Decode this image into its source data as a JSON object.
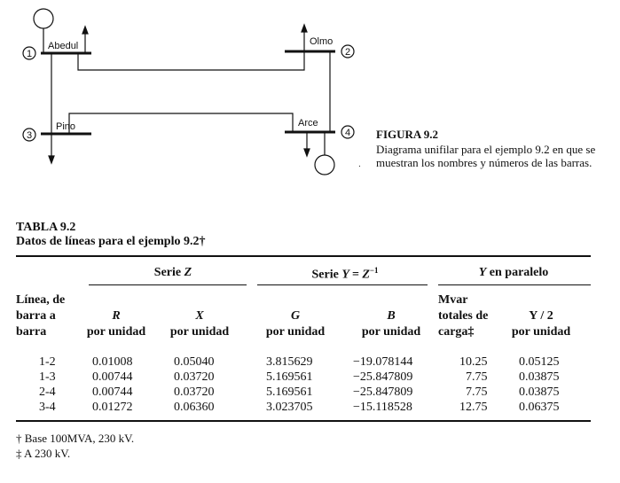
{
  "figure": {
    "title": "FIGURA 9.2",
    "caption": "Diagrama unifilar para el ejemplo 9.2 en que se muestran los nombres y números de las barras.",
    "buses": [
      {
        "number": "①",
        "name": "Abedul"
      },
      {
        "number": "②",
        "name": "Olmo"
      },
      {
        "number": "③",
        "name": "Pino"
      },
      {
        "number": "④",
        "name": "Arce"
      }
    ]
  },
  "table": {
    "title": "TABLA 9.2",
    "subtitle": "Datos de líneas para el ejemplo 9.2†",
    "group_headers": {
      "series_z_text": "Serie ",
      "series_z_sym": "Z",
      "series_y_text": "Serie ",
      "series_y_sym": "Y = Z",
      "series_y_exp": "−1",
      "parallel_sym": "Y",
      "parallel_text": " en paralelo"
    },
    "columns": [
      {
        "line1": "Línea, de",
        "line2": "barra a",
        "line3": "barra"
      },
      {
        "sym": "R",
        "unit": "por unidad"
      },
      {
        "sym": "X",
        "unit": "por unidad"
      },
      {
        "sym": "G",
        "unit": "por unidad"
      },
      {
        "sym": "B",
        "unit": "por unidad"
      },
      {
        "line1": "Mvar",
        "line2": "totales de",
        "line3": "carga‡"
      },
      {
        "sym": "Y / 2",
        "unit": "por unidad"
      }
    ],
    "rows": [
      {
        "line": "1-2",
        "r": "0.01008",
        "x": "0.05040",
        "g": "3.815629",
        "b": "−19.078144",
        "mvar": "10.25",
        "y2": "0.05125"
      },
      {
        "line": "1-3",
        "r": "0.00744",
        "x": "0.03720",
        "g": "5.169561",
        "b": "−25.847809",
        "mvar": "7.75",
        "y2": "0.03875"
      },
      {
        "line": "2-4",
        "r": "0.00744",
        "x": "0.03720",
        "g": "5.169561",
        "b": "−25.847809",
        "mvar": "7.75",
        "y2": "0.03875"
      },
      {
        "line": "3-4",
        "r": "0.01272",
        "x": "0.06360",
        "g": "3.023705",
        "b": "−15.118528",
        "mvar": "12.75",
        "y2": "0.06375"
      }
    ]
  },
  "footnotes": [
    "† Base 100MVA, 230 kV.",
    "‡ A 230 kV."
  ]
}
